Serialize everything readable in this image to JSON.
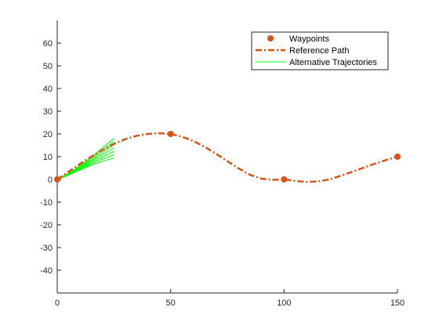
{
  "chart_data": {
    "type": "line",
    "title": "",
    "xlabel": "",
    "ylabel": "",
    "xlim": [
      0,
      150
    ],
    "ylim": [
      -50,
      70
    ],
    "xticks": [
      0,
      50,
      100,
      150
    ],
    "yticks": [
      -40,
      -30,
      -20,
      -10,
      0,
      10,
      20,
      30,
      40,
      50,
      60
    ],
    "grid": false,
    "legend_position": "top-right",
    "series": [
      {
        "name": "Waypoints",
        "kind": "scatter",
        "color": "#D95319",
        "x": [
          0,
          50,
          100,
          150
        ],
        "y": [
          0,
          20,
          0,
          10
        ]
      },
      {
        "name": "Reference Path",
        "kind": "dash-dot-line",
        "color": "#D95319",
        "x": [
          0,
          5,
          10,
          15,
          20,
          25,
          30,
          35,
          40,
          45,
          50,
          55,
          60,
          65,
          70,
          75,
          80,
          85,
          90,
          95,
          100,
          105,
          110,
          115,
          120,
          125,
          130,
          135,
          140,
          145,
          150
        ],
        "y": [
          0,
          3.4,
          6.8,
          10.0,
          13.0,
          15.6,
          17.7,
          19.2,
          20.0,
          20.3,
          20.0,
          18.8,
          16.9,
          14.3,
          11.3,
          8.0,
          4.8,
          2.0,
          0.3,
          -0.2,
          0,
          -0.7,
          -1.1,
          -0.9,
          0,
          1.6,
          3.3,
          5.1,
          6.9,
          8.5,
          10
        ]
      },
      {
        "name": "Alternative Trajectories",
        "kind": "line-group",
        "color": "#00FF00",
        "trajectories": [
          {
            "x": [
              0,
              4,
              8,
              12,
              16,
              20,
              25
            ],
            "y": [
              0,
              1.5,
              3.3,
              5.0,
              6.6,
              8.0,
              9.4
            ]
          },
          {
            "x": [
              0,
              4,
              8,
              12,
              16,
              20,
              25
            ],
            "y": [
              0,
              1.6,
              3.5,
              5.4,
              7.3,
              9.0,
              10.8
            ]
          },
          {
            "x": [
              0,
              4,
              8,
              12,
              16,
              20,
              25
            ],
            "y": [
              0,
              1.7,
              3.7,
              5.8,
              7.9,
              10.0,
              12.3
            ]
          },
          {
            "x": [
              0,
              4,
              8,
              12,
              16,
              20,
              25
            ],
            "y": [
              0,
              1.8,
              3.9,
              6.2,
              8.6,
              11.0,
              13.8
            ]
          },
          {
            "x": [
              0,
              4,
              8,
              12,
              16,
              20,
              25
            ],
            "y": [
              0,
              1.9,
              4.1,
              6.6,
              9.2,
              12.0,
              15.2
            ]
          },
          {
            "x": [
              0,
              4,
              8,
              12,
              16,
              20,
              25
            ],
            "y": [
              0,
              2.0,
              4.3,
              7.0,
              9.9,
              13.0,
              16.6
            ]
          },
          {
            "x": [
              0,
              4,
              8,
              12,
              16,
              20,
              25
            ],
            "y": [
              0,
              2.1,
              4.6,
              7.5,
              10.6,
              14.0,
              18.0
            ]
          }
        ]
      }
    ]
  }
}
